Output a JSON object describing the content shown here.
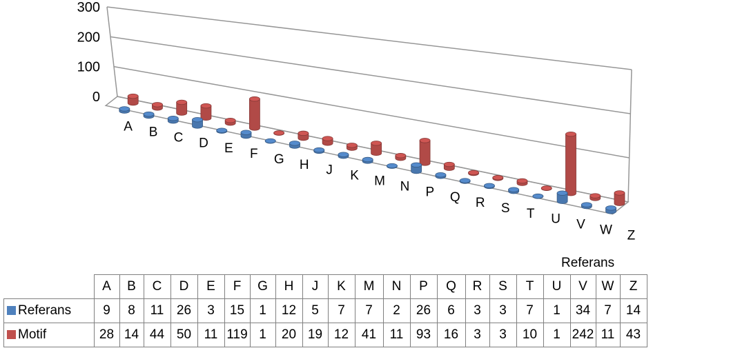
{
  "chart_data": {
    "type": "bar",
    "variant": "3d-cylinder",
    "categories": [
      "A",
      "B",
      "C",
      "D",
      "E",
      "F",
      "G",
      "H",
      "J",
      "K",
      "M",
      "N",
      "P",
      "Q",
      "R",
      "S",
      "T",
      "U",
      "V",
      "W",
      "Z"
    ],
    "series": [
      {
        "name": "Referans",
        "color": "#4f81bd",
        "values": [
          9,
          8,
          11,
          26,
          3,
          15,
          1,
          12,
          5,
          7,
          7,
          2,
          26,
          6,
          3,
          3,
          7,
          1,
          34,
          7,
          14
        ]
      },
      {
        "name": "Motif",
        "color": "#c0504d",
        "values": [
          28,
          14,
          44,
          50,
          11,
          119,
          1,
          20,
          19,
          12,
          41,
          11,
          93,
          16,
          3,
          3,
          10,
          1,
          242,
          11,
          43
        ]
      }
    ],
    "yticks": [
      "0",
      "100",
      "200",
      "300"
    ],
    "ylim": [
      0,
      300
    ],
    "depth_axis_label": "Referans",
    "grid": true,
    "legend": "data-table"
  }
}
